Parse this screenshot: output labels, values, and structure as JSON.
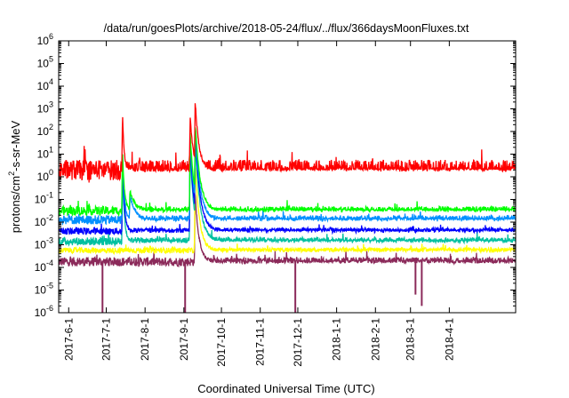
{
  "chart_data": {
    "type": "line",
    "title": "/data/run/goesPlots/archive/2018-05-24/flux/../flux/366daysMoonFluxes.txt",
    "xlabel": "Coordinated Universal Time (UTC)",
    "ylabel": {
      "base": "protons/cm",
      "sup": "2",
      "rest": "-s-sr-MeV"
    },
    "yscale": "log",
    "ylim": [
      "1e-6",
      "1e6"
    ],
    "y_ticks": [
      {
        "base": "10",
        "exp": "-6"
      },
      {
        "base": "10",
        "exp": "-5"
      },
      {
        "base": "10",
        "exp": "-4"
      },
      {
        "base": "10",
        "exp": "-3"
      },
      {
        "base": "10",
        "exp": "-2"
      },
      {
        "base": "10",
        "exp": "-1"
      },
      {
        "base": "10",
        "exp": "0"
      },
      {
        "base": "10",
        "exp": "1"
      },
      {
        "base": "10",
        "exp": "2"
      },
      {
        "base": "10",
        "exp": "3"
      },
      {
        "base": "10",
        "exp": "4"
      },
      {
        "base": "10",
        "exp": "5"
      },
      {
        "base": "10",
        "exp": "6"
      }
    ],
    "xlim": [
      "2017-05-24",
      "2018-05-24"
    ],
    "x_ticks": [
      "2017-6-1",
      "2017-7-1",
      "2017-8-1",
      "2017-9-1",
      "2017-10-1",
      "2017-11-1",
      "2017-12-1",
      "2018-1-1",
      "2018-2-1",
      "2018-3-1",
      "2018-4-1"
    ],
    "grid": false,
    "series": [
      {
        "color": "#8b2a5a",
        "baseline_log10": -3.75,
        "noise": 0.2,
        "events": [
          {
            "date": "2017-9-10",
            "peak_log10": -0.7,
            "decay_days": 3
          }
        ],
        "dips": [
          {
            "date": "2017-6-28",
            "log10": -6
          },
          {
            "date": "2017-9-2",
            "log10": -6
          },
          {
            "date": "2017-11-29",
            "log10": -6
          },
          {
            "date": "2018-3-5",
            "log10": -5.2
          },
          {
            "date": "2018-3-10",
            "log10": -5.7
          }
        ]
      },
      {
        "color": "#ffff00",
        "baseline_log10": -3.25,
        "noise": 0.12,
        "events": [
          {
            "date": "2017-9-10",
            "peak_log10": 0.6,
            "decay_days": 3.5
          }
        ]
      },
      {
        "color": "#00c0a0",
        "baseline_log10": -2.85,
        "noise": 0.18,
        "events": [
          {
            "date": "2017-7-14",
            "peak_log10": 0.3,
            "decay_days": 1.5
          },
          {
            "date": "2017-9-6",
            "peak_log10": 1.3,
            "decay_days": 3
          },
          {
            "date": "2017-9-10",
            "peak_log10": 1.6,
            "decay_days": 4
          }
        ]
      },
      {
        "color": "#0000ff",
        "baseline_log10": -2.4,
        "noise": 0.15,
        "events": [
          {
            "date": "2017-7-14",
            "peak_log10": 0.7,
            "decay_days": 1.5
          },
          {
            "date": "2017-9-6",
            "peak_log10": 1.6,
            "decay_days": 3
          },
          {
            "date": "2017-9-10",
            "peak_log10": 2.0,
            "decay_days": 4
          }
        ]
      },
      {
        "color": "#0090ff",
        "baseline_log10": -1.9,
        "noise": 0.2,
        "events": [
          {
            "date": "2017-7-14",
            "peak_log10": 0.9,
            "decay_days": 1.5
          },
          {
            "date": "2017-7-20",
            "peak_log10": -0.8,
            "decay_days": 4
          },
          {
            "date": "2017-9-6",
            "peak_log10": 1.8,
            "decay_days": 3
          },
          {
            "date": "2017-9-10",
            "peak_log10": 2.2,
            "decay_days": 4
          }
        ]
      },
      {
        "color": "#00ff00",
        "baseline_log10": -1.5,
        "noise": 0.2,
        "events": [
          {
            "date": "2017-7-14",
            "peak_log10": 1.1,
            "decay_days": 1.5
          },
          {
            "date": "2017-7-20",
            "peak_log10": -0.6,
            "decay_days": 4
          },
          {
            "date": "2017-9-6",
            "peak_log10": 2.0,
            "decay_days": 3
          },
          {
            "date": "2017-9-10",
            "peak_log10": 2.4,
            "decay_days": 4
          }
        ]
      },
      {
        "color": "#ff0000",
        "baseline_log10": 0.3,
        "noise": 0.45,
        "events": [
          {
            "date": "2017-7-14",
            "peak_log10": 2.9,
            "decay_days": 1.2
          },
          {
            "date": "2017-9-6",
            "peak_log10": 2.7,
            "decay_days": 2.5
          },
          {
            "date": "2017-9-10",
            "peak_log10": 3.4,
            "decay_days": 3
          }
        ]
      }
    ]
  }
}
